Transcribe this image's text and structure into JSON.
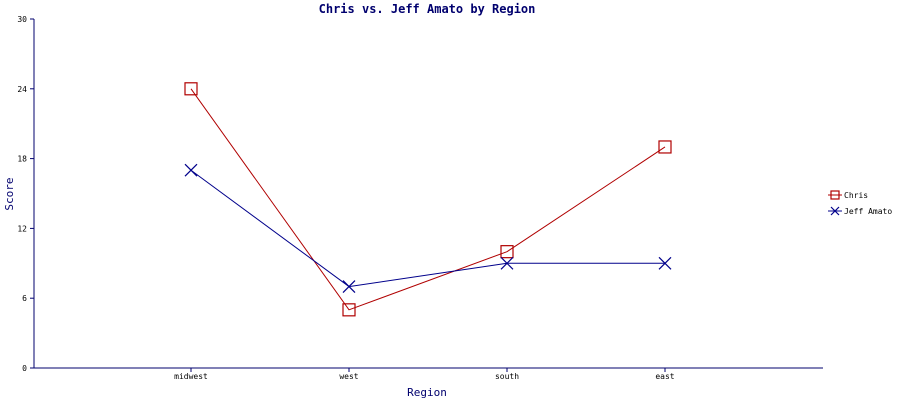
{
  "chart_data": {
    "type": "line",
    "title": "Chris vs. Jeff Amato by Region",
    "xlabel": "Region",
    "ylabel": "Score",
    "categories": [
      "midwest",
      "west",
      "south",
      "east"
    ],
    "ylim": [
      0,
      30
    ],
    "yticks": [
      0,
      6,
      12,
      18,
      24,
      30
    ],
    "grid": false,
    "legend_position": "right",
    "series": [
      {
        "name": "Chris",
        "values": [
          24,
          5,
          10,
          19
        ],
        "color": "#b00000",
        "marker": "square"
      },
      {
        "name": "Jeff Amato",
        "values": [
          17,
          7,
          9,
          9
        ],
        "color": "#00008b",
        "marker": "x"
      }
    ]
  }
}
